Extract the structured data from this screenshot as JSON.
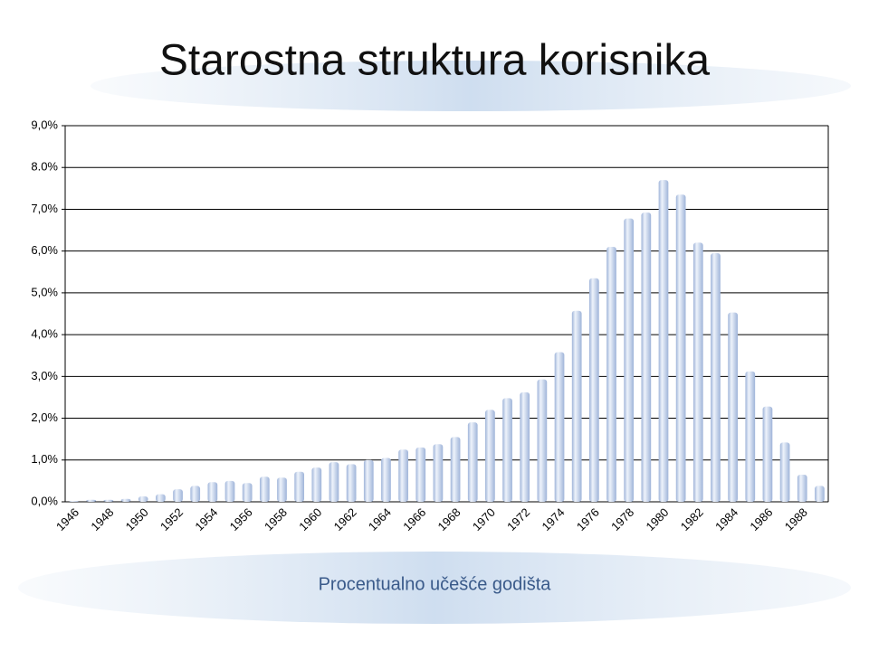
{
  "chart_data": {
    "type": "bar",
    "title": "Starostna struktura korisnika",
    "x_label": "Procentualno učešće godišta",
    "categories": [
      "1946",
      null,
      "1948",
      null,
      "1950",
      null,
      "1952",
      null,
      "1954",
      null,
      "1956",
      null,
      "1958",
      null,
      "1960",
      null,
      "1962",
      null,
      "1964",
      null,
      "1966",
      null,
      "1968",
      null,
      "1970",
      null,
      "1972",
      null,
      "1974",
      null,
      "1976",
      null,
      "1978",
      null,
      "1980",
      null,
      "1982",
      null,
      "1984",
      null,
      "1986",
      null,
      "1988",
      null
    ],
    "values": [
      0.02,
      0.05,
      0.05,
      0.07,
      0.13,
      0.18,
      0.3,
      0.38,
      0.47,
      0.5,
      0.45,
      0.6,
      0.58,
      0.72,
      0.82,
      0.95,
      0.9,
      1.0,
      1.05,
      1.25,
      1.3,
      1.38,
      1.55,
      1.9,
      2.2,
      2.48,
      2.62,
      2.93,
      3.58,
      4.57,
      5.35,
      6.1,
      6.78,
      6.92,
      7.7,
      7.35,
      6.2,
      5.95,
      4.53,
      3.12,
      2.28,
      1.42,
      0.65,
      0.38
    ],
    "color": "#9fb4d9",
    "ylim": [
      0,
      9
    ],
    "yticks": [
      {
        "value": 0,
        "label": "0,0%"
      },
      {
        "value": 1,
        "label": "1,0%"
      },
      {
        "value": 2,
        "label": "2,0%"
      },
      {
        "value": 3,
        "label": "3,0%"
      },
      {
        "value": 4,
        "label": "4,0%"
      },
      {
        "value": 5,
        "label": "5,0%"
      },
      {
        "value": 6,
        "label": "6,0%"
      },
      {
        "value": 7,
        "label": "7,0%"
      },
      {
        "value": 8,
        "label": "8.0%"
      },
      {
        "value": 9,
        "label": "9,0%"
      }
    ],
    "grid": true
  }
}
